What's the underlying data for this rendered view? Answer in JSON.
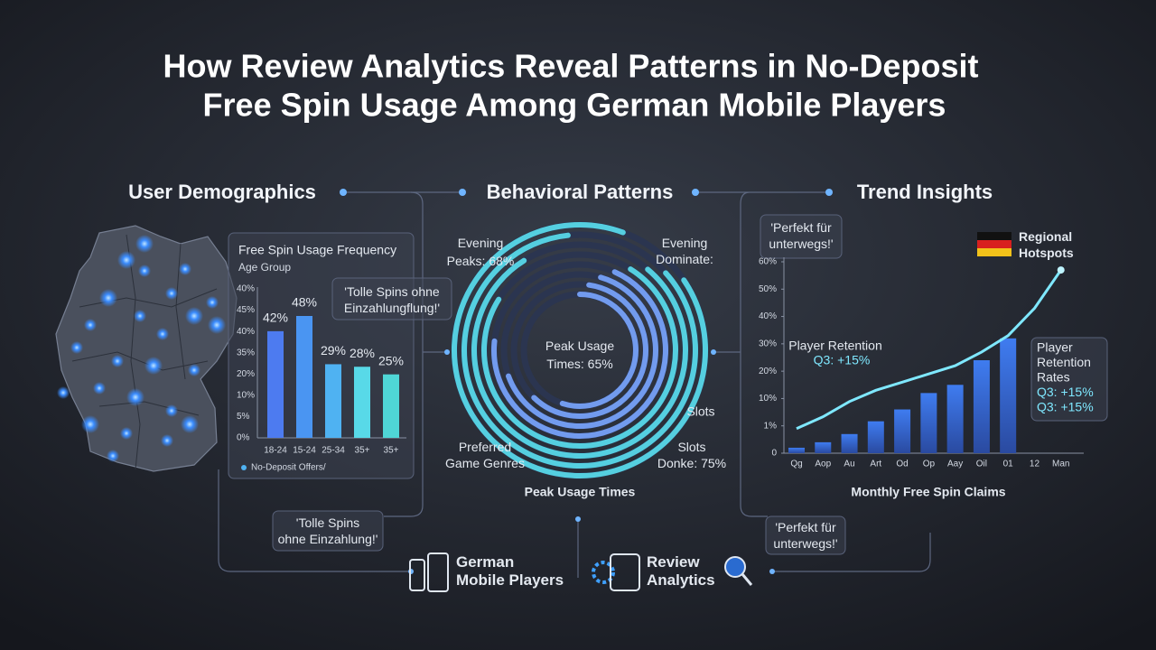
{
  "header": {
    "title_lines": [
      "How Review Analytics Reveal Patterns in No-Deposit",
      "Free Spin Usage Among German Mobile Players"
    ]
  },
  "sections": [
    "User Demographics",
    "Behavioral Patterns",
    "Trend Insights"
  ],
  "demographics": {
    "title": "Free Spin Usage Frequency",
    "subtitle": "Age Group",
    "axis_labels": [
      "40%",
      "45%",
      "40%",
      "35%",
      "20%",
      "10%",
      "5%",
      "0%"
    ],
    "categories": [
      "18-24",
      "15-24",
      "25-34",
      "35+",
      "35+"
    ],
    "values": [
      42,
      48,
      29,
      28,
      25
    ],
    "value_labels": [
      "42%",
      "48%",
      "29%",
      "28%",
      "25%"
    ],
    "colors": [
      "#4d7bf0",
      "#4a95f2",
      "#4fb2f2",
      "#58d9e8",
      "#4fd6d6"
    ],
    "legend": "No-Deposit Offers/",
    "quote": "'Tolle Spins ohne Einzahlungflung!'"
  },
  "behavior": {
    "labels": [
      "Evening Peaks: 68%",
      "Evening Dominate:",
      "Peak Usage Times: 65%",
      "Slots",
      "Preferred Game Genres",
      "Slots Donke: 75%"
    ],
    "caption": "Peak Usage Times",
    "quote": "'Tolle Spins ohne Einzahlung!'"
  },
  "trends": {
    "quote_top": "'Perfekt für unterwegs!'",
    "legend": "Regional Hotspots",
    "yticks": [
      {
        "value": 60,
        "label": "60%"
      },
      {
        "value": 50,
        "label": "50%"
      },
      {
        "value": 40,
        "label": "40%"
      },
      {
        "value": 30,
        "label": "30%"
      },
      {
        "value": 20,
        "label": "20%"
      },
      {
        "value": 10,
        "label": "10%"
      },
      {
        "value": 1,
        "label": "1%"
      },
      0
    ],
    "categories": [
      "Qg",
      "Aop",
      "Au",
      "Art",
      "Od",
      "Op",
      "Aay",
      "Oil",
      "01",
      "12",
      "Man"
    ],
    "bars": [
      0.2,
      0.4,
      0.7,
      2.5,
      6.4,
      12,
      15,
      24,
      32,
      null,
      null
    ],
    "line": [
      0.9,
      4,
      9,
      13,
      16,
      19,
      22,
      27,
      33,
      43,
      57
    ],
    "callout_left": [
      "Player Retention",
      "Q3: +15%"
    ],
    "callout_right": [
      "Player",
      "Retention",
      "Rates",
      "Q3: +15%",
      "Q3: +15%"
    ],
    "caption": "Monthly Free Spin Claims",
    "quote_bottom": "'Perfekt für unterwegs!'"
  },
  "footer": [
    "German Mobile Players",
    "Review Analytics"
  ]
}
